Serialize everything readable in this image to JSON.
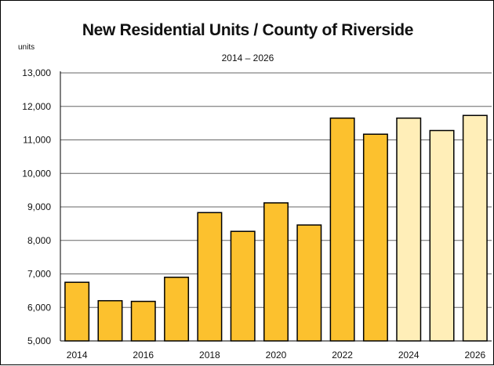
{
  "chart_data": {
    "type": "bar",
    "title": "New Residential Units / County of Riverside",
    "subtitle": "2014 – 2026",
    "ylabel": "units",
    "xlabel": "",
    "categories": [
      "2014",
      "2015",
      "2016",
      "2017",
      "2018",
      "2019",
      "2020",
      "2021",
      "2022",
      "2023",
      "2024",
      "2025",
      "2026"
    ],
    "x_tick_labels": [
      "2014",
      "2016",
      "2018",
      "2020",
      "2022",
      "2024",
      "2026"
    ],
    "values": [
      6750,
      6200,
      6180,
      6900,
      8830,
      8270,
      9120,
      8460,
      11650,
      11170,
      11650,
      11280,
      11730
    ],
    "forecast_from": "2024",
    "ylim": [
      5000,
      13000
    ],
    "y_ticks": [
      "5,000",
      "6,000",
      "7,000",
      "8,000",
      "9,000",
      "10,000",
      "11,000",
      "12,000",
      "13,000"
    ],
    "grid": true,
    "colors": {
      "actual": "#fcc12e",
      "forecast": "#ffeeb8",
      "edge": "#000000",
      "grid": "#666666"
    }
  }
}
